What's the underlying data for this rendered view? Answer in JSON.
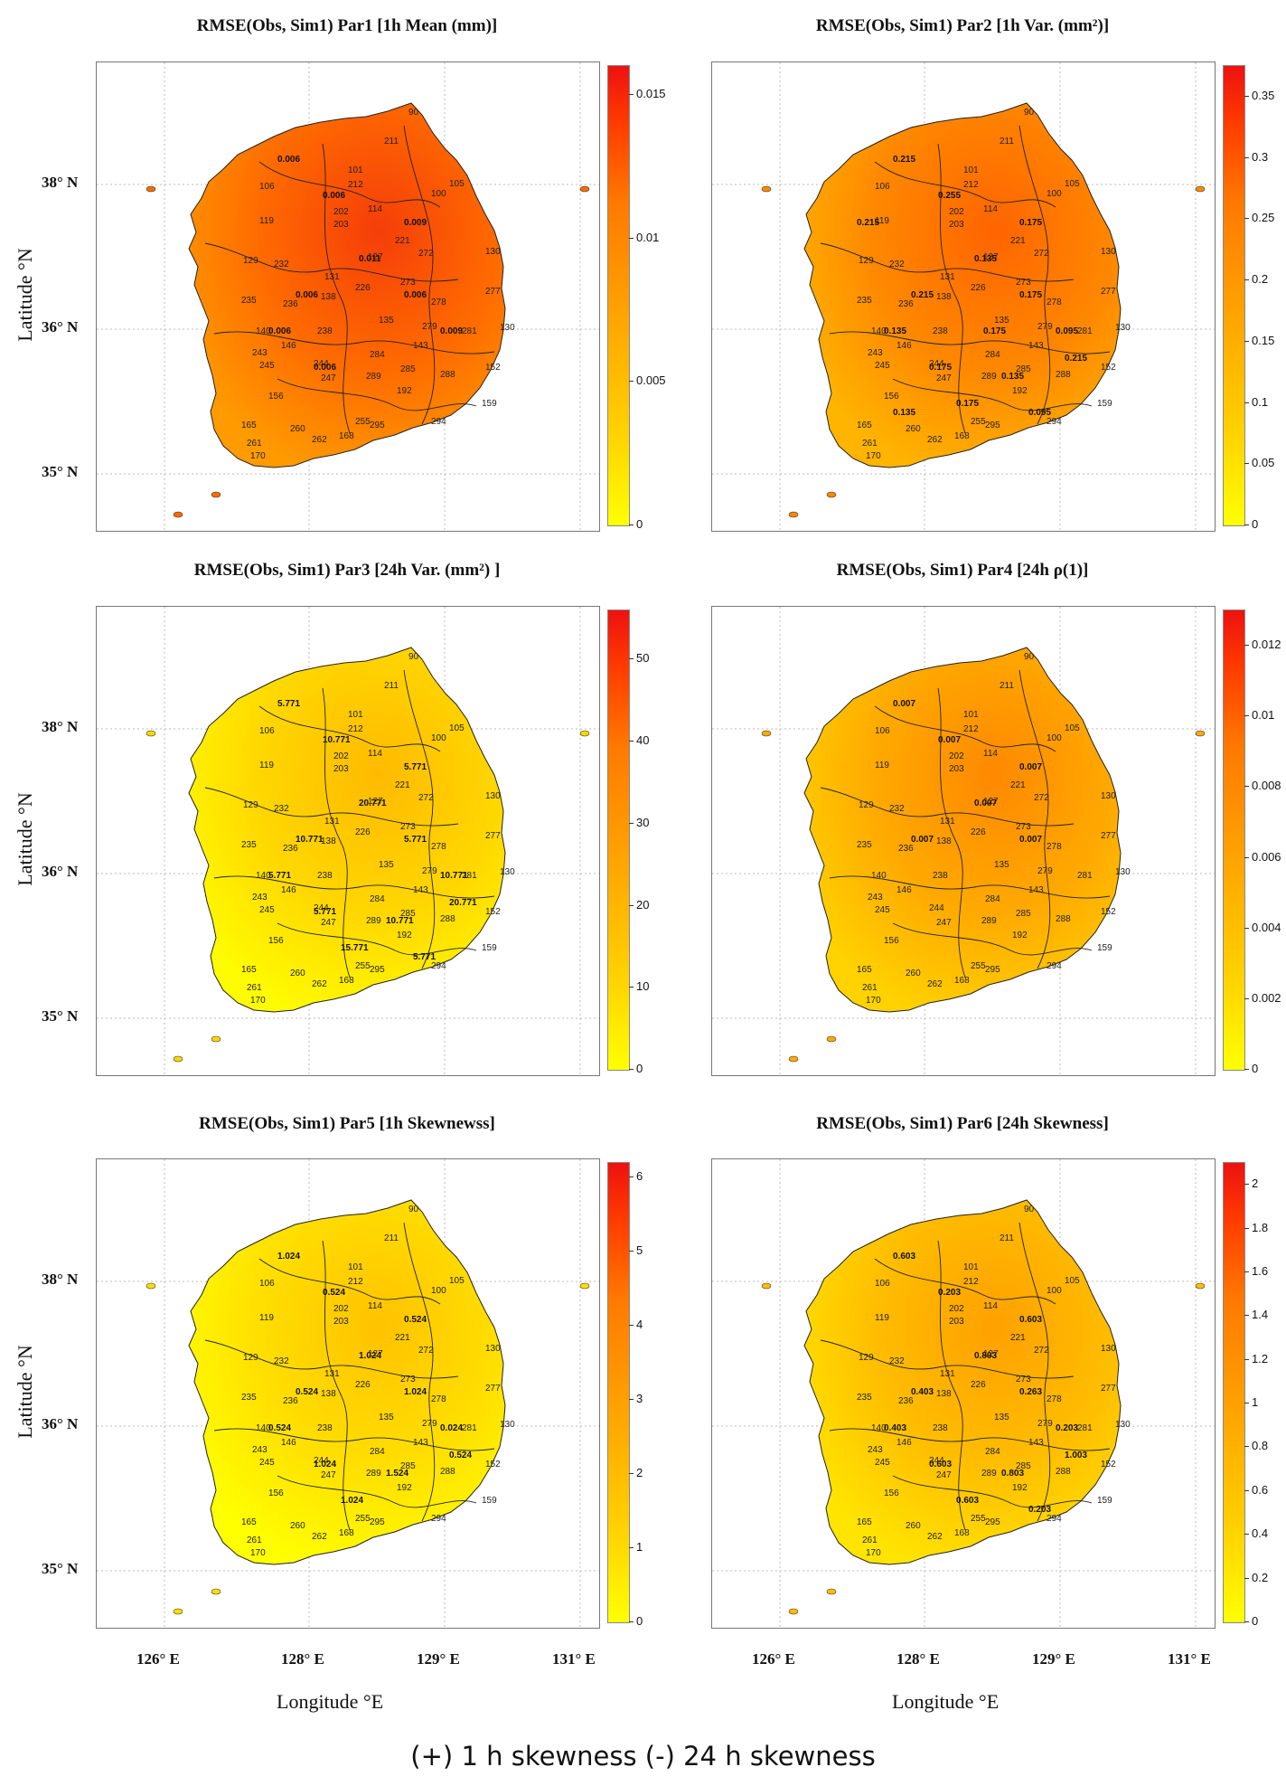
{
  "caption": "(+) 1 h skewness (-) 24 h skewness",
  "y_axis_label": "Latitude °N",
  "x_axis_label": "Longitude °E",
  "lat_ticks": [
    "38° N",
    "36° N",
    "35° N"
  ],
  "lon_ticks": [
    "126° E",
    "128° E",
    "129° E",
    "131° E"
  ],
  "stations": [
    "90",
    "101",
    "105",
    "100",
    "211",
    "212",
    "106",
    "202",
    "114",
    "119",
    "203",
    "221",
    "129",
    "232",
    "131",
    "127",
    "272",
    "130",
    "235",
    "236",
    "138",
    "226",
    "273",
    "278",
    "277",
    "140",
    "238",
    "135",
    "279",
    "281",
    "130",
    "146",
    "243",
    "143",
    "244",
    "284",
    "285",
    "245",
    "247",
    "289",
    "288",
    "152",
    "192",
    "156",
    "159",
    "165",
    "260",
    "261",
    "262",
    "168",
    "255",
    "294",
    "170",
    "295"
  ],
  "colors": {
    "low": "#ffff00",
    "high": "#ee1111"
  },
  "chart_data": [
    {
      "type": "heatmap",
      "title": "RMSE(Obs, Sim1) Par1 [1h Mean (mm)]",
      "colorbar_ticks": [
        "0",
        "0.005",
        "0.01",
        "0.015"
      ],
      "colorbar_range": [
        0,
        0.016
      ],
      "contour_labels": [
        "0.006",
        "0.006",
        "0.009",
        "0.011",
        "0.006",
        "0.006",
        "0.006",
        "0.009",
        "0.006"
      ],
      "map_intensity": 0.72
    },
    {
      "type": "heatmap",
      "title": "RMSE(Obs, Sim1) Par2 [1h Var. (mm²)]",
      "colorbar_ticks": [
        "0",
        "0.05",
        "0.1",
        "0.15",
        "0.2",
        "0.25",
        "0.3",
        "0.35"
      ],
      "colorbar_range": [
        0,
        0.375
      ],
      "contour_labels": [
        "0.215",
        "0.255",
        "0.175",
        "0.135",
        "0.215",
        "0.175",
        "0.135",
        "0.095",
        "0.175",
        "0.135",
        "0.215",
        "0.175",
        "0.095",
        "0.135",
        "0.175",
        "0.215"
      ],
      "map_intensity": 0.6
    },
    {
      "type": "heatmap",
      "title": "RMSE(Obs, Sim1) Par3 [24h Var. (mm²) ]",
      "colorbar_ticks": [
        "0",
        "10",
        "20",
        "30",
        "40",
        "50"
      ],
      "colorbar_range": [
        0,
        56
      ],
      "contour_labels": [
        "5.771",
        "10.771",
        "5.771",
        "20.771",
        "10.771",
        "5.771",
        "5.771",
        "10.771",
        "5.771",
        "10.771",
        "20.771",
        "15.771",
        "5.771"
      ],
      "map_intensity": 0.22
    },
    {
      "type": "heatmap",
      "title": "RMSE(Obs, Sim1) Par4 [24h ρ(1)]",
      "colorbar_ticks": [
        "0",
        "0.002",
        "0.004",
        "0.006",
        "0.008",
        "0.01",
        "0.012"
      ],
      "colorbar_range": [
        0,
        0.013
      ],
      "contour_labels": [
        "0.007",
        "0.007",
        "0.007",
        "0.007",
        "0.007",
        "0.007"
      ],
      "map_intensity": 0.45
    },
    {
      "type": "heatmap",
      "title": "RMSE(Obs, Sim1) Par5 [1h Skewnewss]",
      "colorbar_ticks": [
        "0",
        "1",
        "2",
        "3",
        "4",
        "5",
        "6"
      ],
      "colorbar_range": [
        0,
        6.2
      ],
      "contour_labels": [
        "1.024",
        "0.524",
        "0.524",
        "1.024",
        "0.524",
        "1.024",
        "0.524",
        "0.024",
        "1.024",
        "1.524",
        "0.524",
        "1.024"
      ],
      "map_intensity": 0.18
    },
    {
      "type": "heatmap",
      "title": "RMSE(Obs, Sim1) Par6 [24h Skewness]",
      "colorbar_ticks": [
        "0",
        "0.2",
        "0.4",
        "0.6",
        "0.8",
        "1",
        "1.2",
        "1.4",
        "1.6",
        "1.8",
        "2"
      ],
      "colorbar_range": [
        0,
        2.1
      ],
      "contour_labels": [
        "0.603",
        "0.203",
        "0.603",
        "0.803",
        "0.403",
        "0.263",
        "0.403",
        "0.203",
        "0.603",
        "0.803",
        "1.003",
        "0.603",
        "0.203"
      ],
      "map_intensity": 0.35
    }
  ]
}
